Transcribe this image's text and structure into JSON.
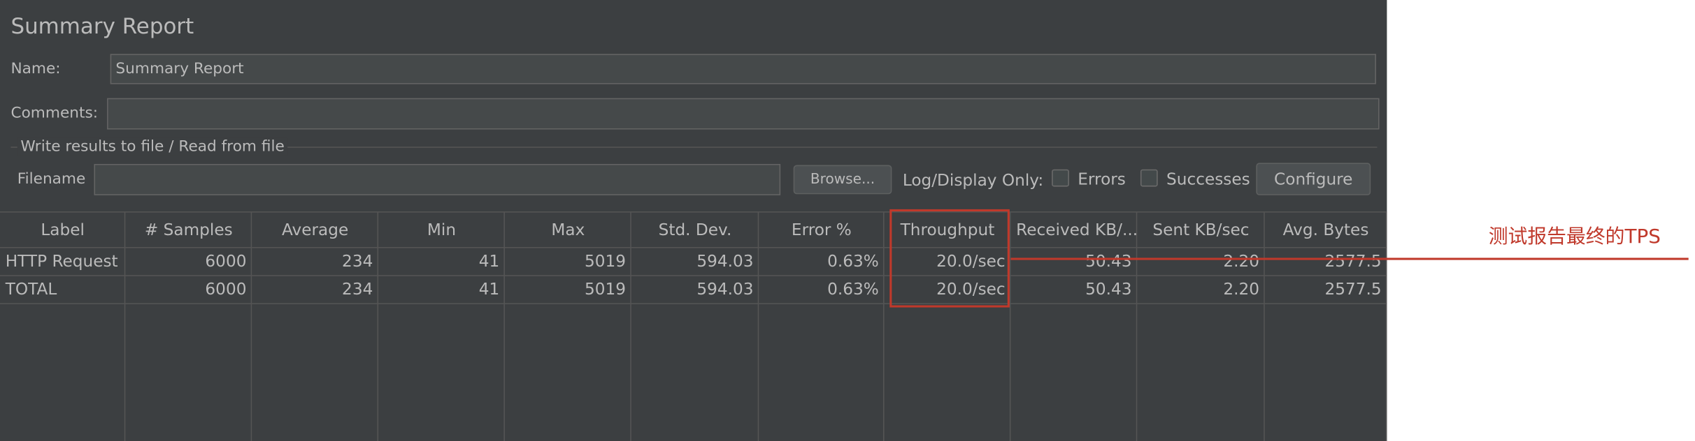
{
  "header": {
    "title": "Summary Report"
  },
  "form": {
    "name_label": "Name:",
    "name_value": "Summary Report",
    "comments_label": "Comments:",
    "file_section": "Write results to file / Read from file",
    "filename_label": "Filename",
    "browse": "Browse...",
    "log_display": "Log/Display Only:",
    "errors": "Errors",
    "successes": "Successes",
    "configure": "Configure"
  },
  "table": {
    "columns": [
      "Label",
      "# Samples",
      "Average",
      "Min",
      "Max",
      "Std. Dev.",
      "Error %",
      "Throughput",
      "Received KB/...",
      "Sent KB/sec",
      "Avg. Bytes"
    ],
    "rows": [
      [
        "HTTP Request",
        "6000",
        "234",
        "41",
        "5019",
        "594.03",
        "0.63%",
        "20.0/sec",
        "50.43",
        "2.20",
        "2577.5"
      ],
      [
        "TOTAL",
        "6000",
        "234",
        "41",
        "5019",
        "594.03",
        "0.63%",
        "20.0/sec",
        "50.43",
        "2.20",
        "2577.5"
      ]
    ]
  },
  "annotation": {
    "text": "测试报告最终的TPS"
  }
}
